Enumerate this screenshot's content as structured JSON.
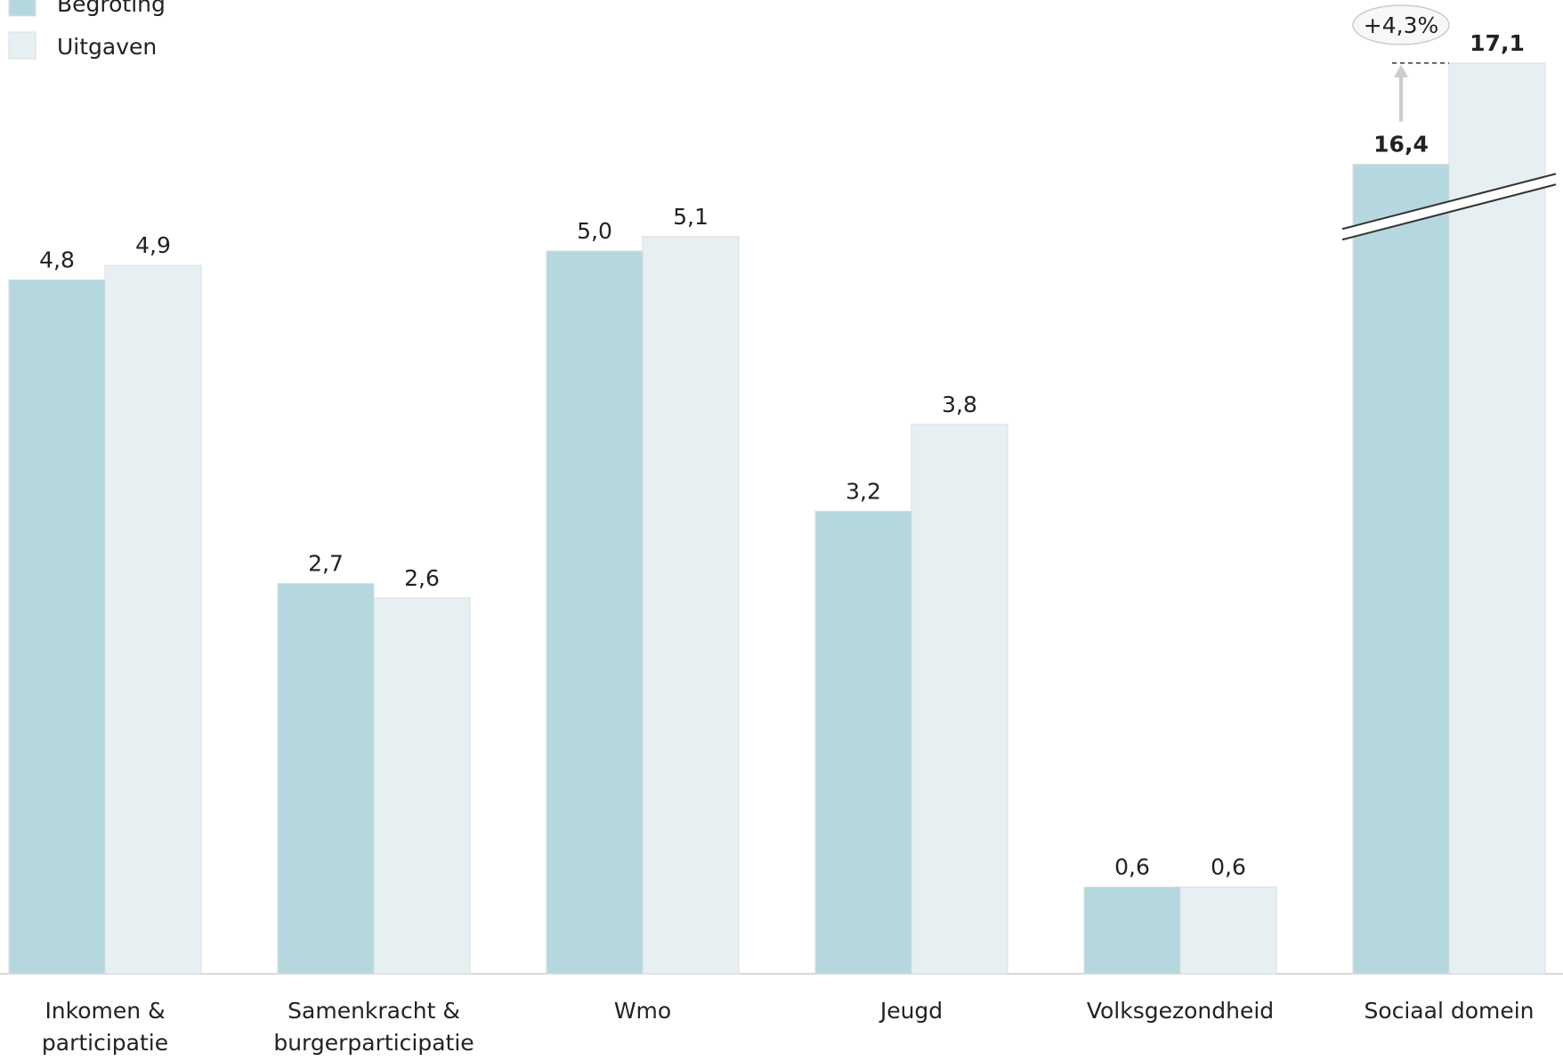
{
  "chart_data": {
    "type": "bar",
    "categories": [
      "Inkomen & participatie",
      "Samenkracht & burgerparticipatie",
      "Wmo",
      "Jeugd",
      "Volksgezondheid",
      "Sociaal domein"
    ],
    "series": [
      {
        "name": "Begroting",
        "color": "#b5d8df",
        "values": [
          4.8,
          2.7,
          5.0,
          3.2,
          0.6,
          16.4
        ],
        "value_labels": [
          "4,8",
          "2,7",
          "5,0",
          "3,2",
          "0,6",
          "16,4"
        ]
      },
      {
        "name": "Uitgaven",
        "color": "#e6f0f2",
        "values": [
          4.9,
          2.6,
          5.1,
          3.8,
          0.6,
          17.1
        ],
        "value_labels": [
          "4,9",
          "2,6",
          "5,1",
          "3,8",
          "0,6",
          "17,1"
        ]
      }
    ],
    "ylim": [
      0,
      17.5
    ],
    "axis_break": [
      5.3,
      16.1
    ],
    "legend": "top-left",
    "annotation": "+4,3%"
  }
}
